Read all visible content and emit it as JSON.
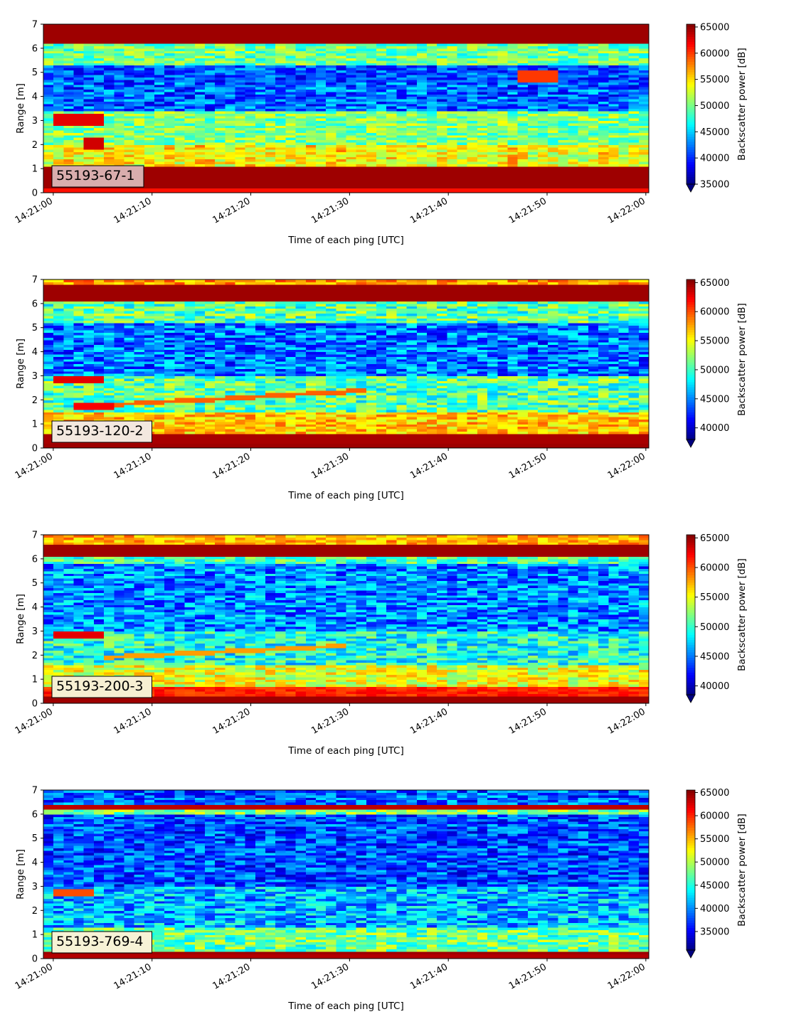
{
  "chart_data": [
    {
      "type": "heatmap",
      "label_box": "55193-67-1",
      "xlabel": "Time of each ping [UTC]",
      "ylabel": "Range [m]",
      "colorbar_label": "Backscatter power [dB]",
      "xlim": [
        "14:21:00",
        "14:22:00"
      ],
      "x_ticks": [
        "14:21:00",
        "14:21:10",
        "14:21:20",
        "14:21:30",
        "14:21:40",
        "14:21:50",
        "14:22:00"
      ],
      "ylim": [
        0,
        7
      ],
      "y_ticks": [
        0,
        1,
        2,
        3,
        4,
        5,
        6,
        7
      ],
      "clim": [
        35000,
        65535
      ],
      "colorbar_ticks": [
        35000,
        40000,
        45000,
        50000,
        55000,
        60000,
        65000
      ],
      "colormap": "jet",
      "colorbar_extend": "min",
      "label_box_color": "#d9adad"
    },
    {
      "type": "heatmap",
      "label_box": "55193-120-2",
      "xlabel": "Time of each ping [UTC]",
      "ylabel": "Range [m]",
      "colorbar_label": "Backscatter power [dB]",
      "xlim": [
        "14:21:00",
        "14:22:00"
      ],
      "x_ticks": [
        "14:21:00",
        "14:21:10",
        "14:21:20",
        "14:21:30",
        "14:21:40",
        "14:21:50",
        "14:22:00"
      ],
      "ylim": [
        0,
        7
      ],
      "y_ticks": [
        0,
        1,
        2,
        3,
        4,
        5,
        6,
        7
      ],
      "clim": [
        38000,
        65535
      ],
      "colorbar_ticks": [
        40000,
        45000,
        50000,
        55000,
        60000,
        65000
      ],
      "colormap": "jet",
      "colorbar_extend": "min",
      "label_box_color": "#f3e8df"
    },
    {
      "type": "heatmap",
      "label_box": "55193-200-3",
      "xlabel": "Time of each ping [UTC]",
      "ylabel": "Range [m]",
      "colorbar_label": "Backscatter power [dB]",
      "xlim": [
        "14:21:00",
        "14:22:00"
      ],
      "x_ticks": [
        "14:21:00",
        "14:21:10",
        "14:21:20",
        "14:21:30",
        "14:21:40",
        "14:21:50",
        "14:22:00"
      ],
      "ylim": [
        0,
        7
      ],
      "y_ticks": [
        0,
        1,
        2,
        3,
        4,
        5,
        6,
        7
      ],
      "clim": [
        38500,
        65535
      ],
      "colorbar_ticks": [
        40000,
        45000,
        50000,
        55000,
        60000,
        65000
      ],
      "colormap": "jet",
      "colorbar_extend": "min",
      "label_box_color": "#f6efd2"
    },
    {
      "type": "heatmap",
      "label_box": "55193-769-4",
      "xlabel": "Time of each ping [UTC]",
      "ylabel": "Range [m]",
      "colorbar_label": "Backscatter power [dB]",
      "xlim": [
        "14:21:00",
        "14:22:00"
      ],
      "x_ticks": [
        "14:21:00",
        "14:21:10",
        "14:21:20",
        "14:21:30",
        "14:21:40",
        "14:21:50",
        "14:22:00"
      ],
      "ylim": [
        0,
        7
      ],
      "y_ticks": [
        0,
        1,
        2,
        3,
        4,
        5,
        6,
        7
      ],
      "clim": [
        31000,
        65535
      ],
      "colorbar_ticks": [
        35000,
        40000,
        45000,
        50000,
        55000,
        60000,
        65000
      ],
      "colormap": "jet",
      "colorbar_extend": "min",
      "label_box_color": "#f7f3d6"
    }
  ]
}
